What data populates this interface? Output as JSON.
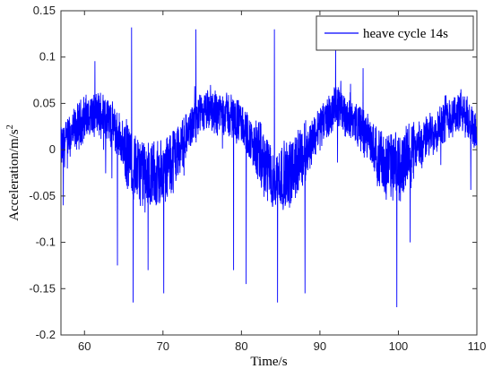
{
  "chart_data": {
    "type": "line",
    "xlabel": "Time/s",
    "ylabel_main": "Acceleration/m/s",
    "ylabel_sup": "2",
    "xlim": [
      57,
      110
    ],
    "ylim": [
      -0.2,
      0.15
    ],
    "x_ticks": [
      60,
      70,
      80,
      90,
      100,
      110
    ],
    "y_ticks": [
      -0.2,
      -0.15,
      -0.1,
      -0.05,
      0,
      0.05,
      0.1,
      0.15
    ],
    "x_tick_labels": [
      "60",
      "70",
      "80",
      "90",
      "100",
      "110"
    ],
    "y_tick_labels": [
      "-0.2",
      "-0.15",
      "-0.1",
      "-0.05",
      "0",
      "0.05",
      "0.1",
      "0.15"
    ],
    "grid": false,
    "legend_position": "top-right",
    "series": [
      {
        "name": "heave cycle 14s",
        "color": "#0000ff",
        "period_s": 14,
        "x_start": 57,
        "x_end": 110,
        "envelope_x": [
          57,
          60,
          62.5,
          64,
          66,
          68,
          70,
          72,
          74,
          76,
          78,
          80,
          82.5,
          84,
          86,
          88,
          90,
          92,
          94,
          96,
          98,
          100,
          102,
          104,
          106,
          108,
          110
        ],
        "envelope_mid": [
          0.0,
          0.035,
          0.04,
          0.02,
          -0.015,
          -0.03,
          -0.025,
          0.0,
          0.03,
          0.042,
          0.04,
          0.028,
          -0.01,
          -0.03,
          -0.028,
          -0.005,
          0.025,
          0.045,
          0.035,
          0.015,
          -0.015,
          -0.02,
          0.0,
          0.015,
          0.035,
          0.04,
          0.02
        ],
        "peaks": [
          {
            "x": 66.0,
            "y": 0.132
          },
          {
            "x": 74.2,
            "y": 0.13
          },
          {
            "x": 84.2,
            "y": 0.13
          },
          {
            "x": 92.0,
            "y": 0.117
          },
          {
            "x": 95.5,
            "y": 0.088
          },
          {
            "x": 66.2,
            "y": -0.165
          },
          {
            "x": 70.1,
            "y": -0.155
          },
          {
            "x": 64.2,
            "y": -0.125
          },
          {
            "x": 68.1,
            "y": -0.13
          },
          {
            "x": 84.6,
            "y": -0.165
          },
          {
            "x": 80.6,
            "y": -0.145
          },
          {
            "x": 79.0,
            "y": -0.13
          },
          {
            "x": 88.1,
            "y": -0.155
          },
          {
            "x": 99.8,
            "y": -0.17
          },
          {
            "x": 101.5,
            "y": -0.1
          },
          {
            "x": 57.3,
            "y": -0.06
          }
        ]
      }
    ]
  }
}
